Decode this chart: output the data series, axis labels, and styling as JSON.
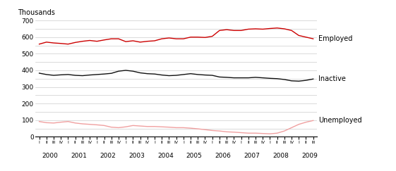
{
  "ylabel": "Thousands",
  "ylim": [
    0,
    700
  ],
  "year_labels": [
    "2000",
    "2001",
    "2002",
    "2003",
    "2004",
    "2005",
    "2006",
    "2007",
    "2008",
    "2009"
  ],
  "legend_labels": [
    "Employed",
    "Inactive",
    "Unemployed"
  ],
  "employed_color": "#cc0000",
  "inactive_color": "#111111",
  "unemployed_color": "#f0a0a0",
  "employed": [
    558,
    570,
    565,
    562,
    558,
    568,
    575,
    580,
    575,
    583,
    590,
    590,
    573,
    578,
    570,
    575,
    578,
    590,
    595,
    590,
    590,
    600,
    600,
    598,
    605,
    640,
    645,
    640,
    640,
    648,
    650,
    648,
    652,
    655,
    650,
    640,
    610,
    600,
    590
  ],
  "inactive": [
    383,
    375,
    370,
    373,
    375,
    370,
    368,
    372,
    375,
    378,
    382,
    395,
    400,
    395,
    385,
    380,
    378,
    372,
    368,
    370,
    375,
    380,
    375,
    372,
    370,
    360,
    358,
    355,
    355,
    355,
    358,
    355,
    352,
    350,
    345,
    337,
    335,
    340,
    348
  ],
  "unemployed": [
    92,
    85,
    83,
    88,
    92,
    83,
    78,
    75,
    72,
    68,
    58,
    55,
    60,
    68,
    65,
    62,
    62,
    60,
    58,
    55,
    55,
    52,
    48,
    43,
    38,
    35,
    30,
    28,
    25,
    22,
    22,
    20,
    18,
    22,
    35,
    55,
    75,
    88,
    98
  ],
  "background_color": "#ffffff",
  "grid_color": "#cccccc"
}
